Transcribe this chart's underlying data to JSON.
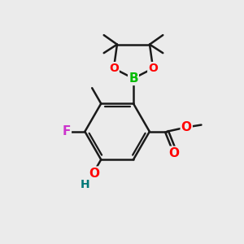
{
  "bg_color": "#ebebeb",
  "bond_color": "#1a1a1a",
  "bond_width": 1.8,
  "atom_colors": {
    "B": "#00bb00",
    "O": "#ff0000",
    "F": "#cc33cc",
    "H_color": "#007777",
    "C": "#1a1a1a"
  },
  "font_size": 10,
  "font_size_small": 8
}
